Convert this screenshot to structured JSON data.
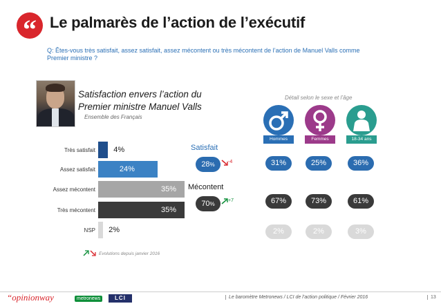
{
  "header": {
    "quote_glyph": "“",
    "title": "Le palmarès de l’action de l’exécutif",
    "question": "Q: Êtes-vous très satisfait, assez satisfait, assez mécontent ou très mécontent de l’action de Manuel Valls comme Premier ministre ?"
  },
  "colors": {
    "accent": "#d9262c",
    "question_text": "#2a6fb5",
    "tres_satisfait": "#1f4e8c",
    "assez_satisfait": "#3b82c4",
    "assez_mecontent": "#a6a6a6",
    "tres_mecontent": "#3a3a3a",
    "nsp": "#d9d9d9",
    "satisfait_pill": "#2b6cb0",
    "mecontent_pill": "#3a3a3a",
    "nsp_pill": "#d9d9d9",
    "hommes": "#2a6fb5",
    "femmes": "#9c3a8a",
    "jeunes": "#2a9d8f"
  },
  "chart_data": {
    "type": "bar",
    "title": "Satisfaction envers l’action du Premier ministre Manuel Valls",
    "subtitle": "Ensemble des Français",
    "categories": [
      "Très satisfait",
      "Assez satisfait",
      "Assez mécontent",
      "Très mécontent",
      "NSP"
    ],
    "values": [
      4,
      24,
      35,
      35,
      2
    ],
    "value_labels": [
      "4%",
      "24%",
      "35%",
      "35%",
      "2%"
    ],
    "summary": [
      {
        "label": "Satisfait",
        "value": 28,
        "display": "28",
        "unit": "%",
        "evolution": "-4",
        "direction": "down"
      },
      {
        "label": "Mécontent",
        "value": 70,
        "display": "70",
        "unit": "%",
        "evolution": "+7",
        "direction": "up"
      }
    ],
    "evolution_note": "Evolutions depuis janvier 2016",
    "detail": {
      "title": "Détail selon le sexe et l’âge",
      "segments": [
        "Hommes",
        "Femmes",
        "18-34 ans"
      ],
      "satisfait": [
        "31%",
        "25%",
        "36%"
      ],
      "mecontent": [
        "67%",
        "73%",
        "61%"
      ],
      "nsp": [
        "2%",
        "2%",
        "3%"
      ]
    }
  },
  "footer": {
    "logo_opinionway": "“opinionway",
    "logo_metronews": "metronews",
    "logo_lci": "LCI",
    "text": "Le baromètre Metronews / LCI de l’action politique / Février 2016",
    "page": "13"
  }
}
